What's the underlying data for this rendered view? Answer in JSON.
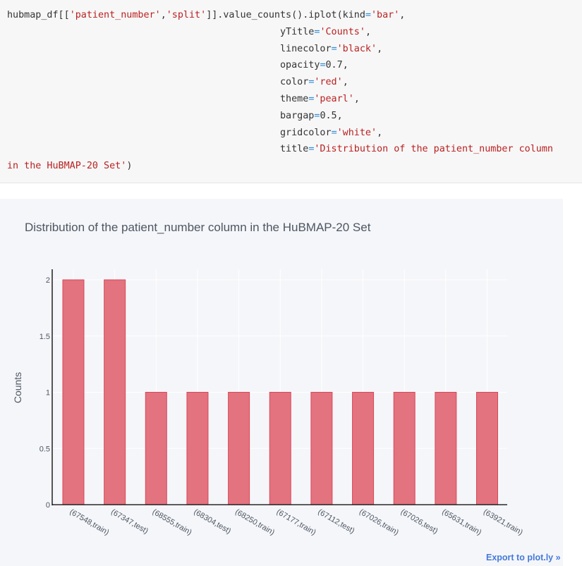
{
  "code_cell": {
    "lines": [
      {
        "segments": [
          {
            "t": "hubmap_df[[",
            "c": "plain"
          },
          {
            "t": "'patient_number'",
            "c": "str"
          },
          {
            "t": ",",
            "c": "plain"
          },
          {
            "t": "'split'",
            "c": "str"
          },
          {
            "t": "]].value_counts().iplot(kind",
            "c": "plain"
          },
          {
            "t": "=",
            "c": "op"
          },
          {
            "t": "'bar'",
            "c": "str"
          },
          {
            "t": ",",
            "c": "plain"
          }
        ]
      },
      {
        "indent": true,
        "segments": [
          {
            "t": "yTitle",
            "c": "plain"
          },
          {
            "t": "=",
            "c": "op"
          },
          {
            "t": "'Counts'",
            "c": "str"
          },
          {
            "t": ",",
            "c": "plain"
          }
        ]
      },
      {
        "indent": true,
        "segments": [
          {
            "t": "linecolor",
            "c": "plain"
          },
          {
            "t": "=",
            "c": "op"
          },
          {
            "t": "'black'",
            "c": "str"
          },
          {
            "t": ",",
            "c": "plain"
          }
        ]
      },
      {
        "indent": true,
        "segments": [
          {
            "t": "opacity",
            "c": "plain"
          },
          {
            "t": "=",
            "c": "op"
          },
          {
            "t": "0.7",
            "c": "plain"
          },
          {
            "t": ",",
            "c": "plain"
          }
        ]
      },
      {
        "indent": true,
        "segments": [
          {
            "t": "color",
            "c": "plain"
          },
          {
            "t": "=",
            "c": "op"
          },
          {
            "t": "'red'",
            "c": "str"
          },
          {
            "t": ",",
            "c": "plain"
          }
        ]
      },
      {
        "indent": true,
        "segments": [
          {
            "t": "theme",
            "c": "plain"
          },
          {
            "t": "=",
            "c": "op"
          },
          {
            "t": "'pearl'",
            "c": "str"
          },
          {
            "t": ",",
            "c": "plain"
          }
        ]
      },
      {
        "indent": true,
        "segments": [
          {
            "t": "bargap",
            "c": "plain"
          },
          {
            "t": "=",
            "c": "op"
          },
          {
            "t": "0.5",
            "c": "plain"
          },
          {
            "t": ",",
            "c": "plain"
          }
        ]
      },
      {
        "indent": true,
        "segments": [
          {
            "t": "gridcolor",
            "c": "plain"
          },
          {
            "t": "=",
            "c": "op"
          },
          {
            "t": "'white'",
            "c": "str"
          },
          {
            "t": ",",
            "c": "plain"
          }
        ]
      },
      {
        "indent": true,
        "segments": [
          {
            "t": "title",
            "c": "plain"
          },
          {
            "t": "=",
            "c": "op"
          },
          {
            "t": "'Distribution of the patient_number column",
            "c": "str"
          }
        ]
      },
      {
        "wrap": true,
        "segments": [
          {
            "t": "in the HuBMAP-20 Set'",
            "c": "str"
          },
          {
            "t": ")",
            "c": "plain"
          }
        ]
      }
    ]
  },
  "chart_data": {
    "type": "bar",
    "title": "Distribution of the patient_number column in the HuBMAP-20 Set",
    "xlabel": "",
    "ylabel": "Counts",
    "ylim": [
      0,
      2.1
    ],
    "yticks": [
      "0",
      "0.5",
      "1",
      "1.5",
      "2"
    ],
    "ytick_values": [
      0,
      0.5,
      1,
      1.5,
      2
    ],
    "grid": true,
    "legend": false,
    "categories": [
      "(67548,train)",
      "(67347,test)",
      "(68555,train)",
      "(68304,test)",
      "(68250,train)",
      "(67177,train)",
      "(67112,test)",
      "(67026,train)",
      "(67026,test)",
      "(65631,train)",
      "(63921,train)"
    ],
    "values": [
      2,
      2,
      1,
      1,
      1,
      1,
      1,
      1,
      1,
      1,
      1
    ],
    "colors": {
      "bar_fill": "#e2737f",
      "bar_line": "#d9485a",
      "plot_bg": "#f5f6f9",
      "grid": "#ffffff",
      "axis_line": "#000000",
      "tick_text": "#4d5663"
    }
  },
  "footer": {
    "export_label": "Export to plot.ly »"
  }
}
